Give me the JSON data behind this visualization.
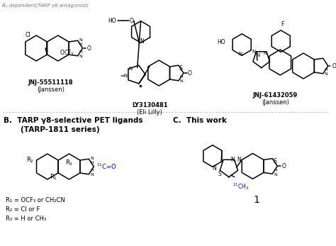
{
  "title_text": "B₂ dependent/TARP γ8 antagonists",
  "section_b_title_1": "B.  TARP γ8-selective PET ligands",
  "section_b_title_2": "(TARP-1811 series)",
  "section_c_title": "C.  This work",
  "compound1_name": "JNJ-55511118",
  "compound1_lab": "(Janssen)",
  "compound2_name": "LY3130481",
  "compound2_lab": "(Eli Lilly)",
  "compound3_name": "JNJ-61432059",
  "compound3_lab": "(Janssen)",
  "r1_line": "R₁ = OCF₃ or CH₂CN",
  "r2_line": "R₂ = Cl or F",
  "r3_line": "R₃ = H or CH₃",
  "compound_num": "1",
  "blue_color": "#0000CC",
  "black_color": "#000000",
  "bg_color": "#FFFFFF",
  "lw": 1.1
}
